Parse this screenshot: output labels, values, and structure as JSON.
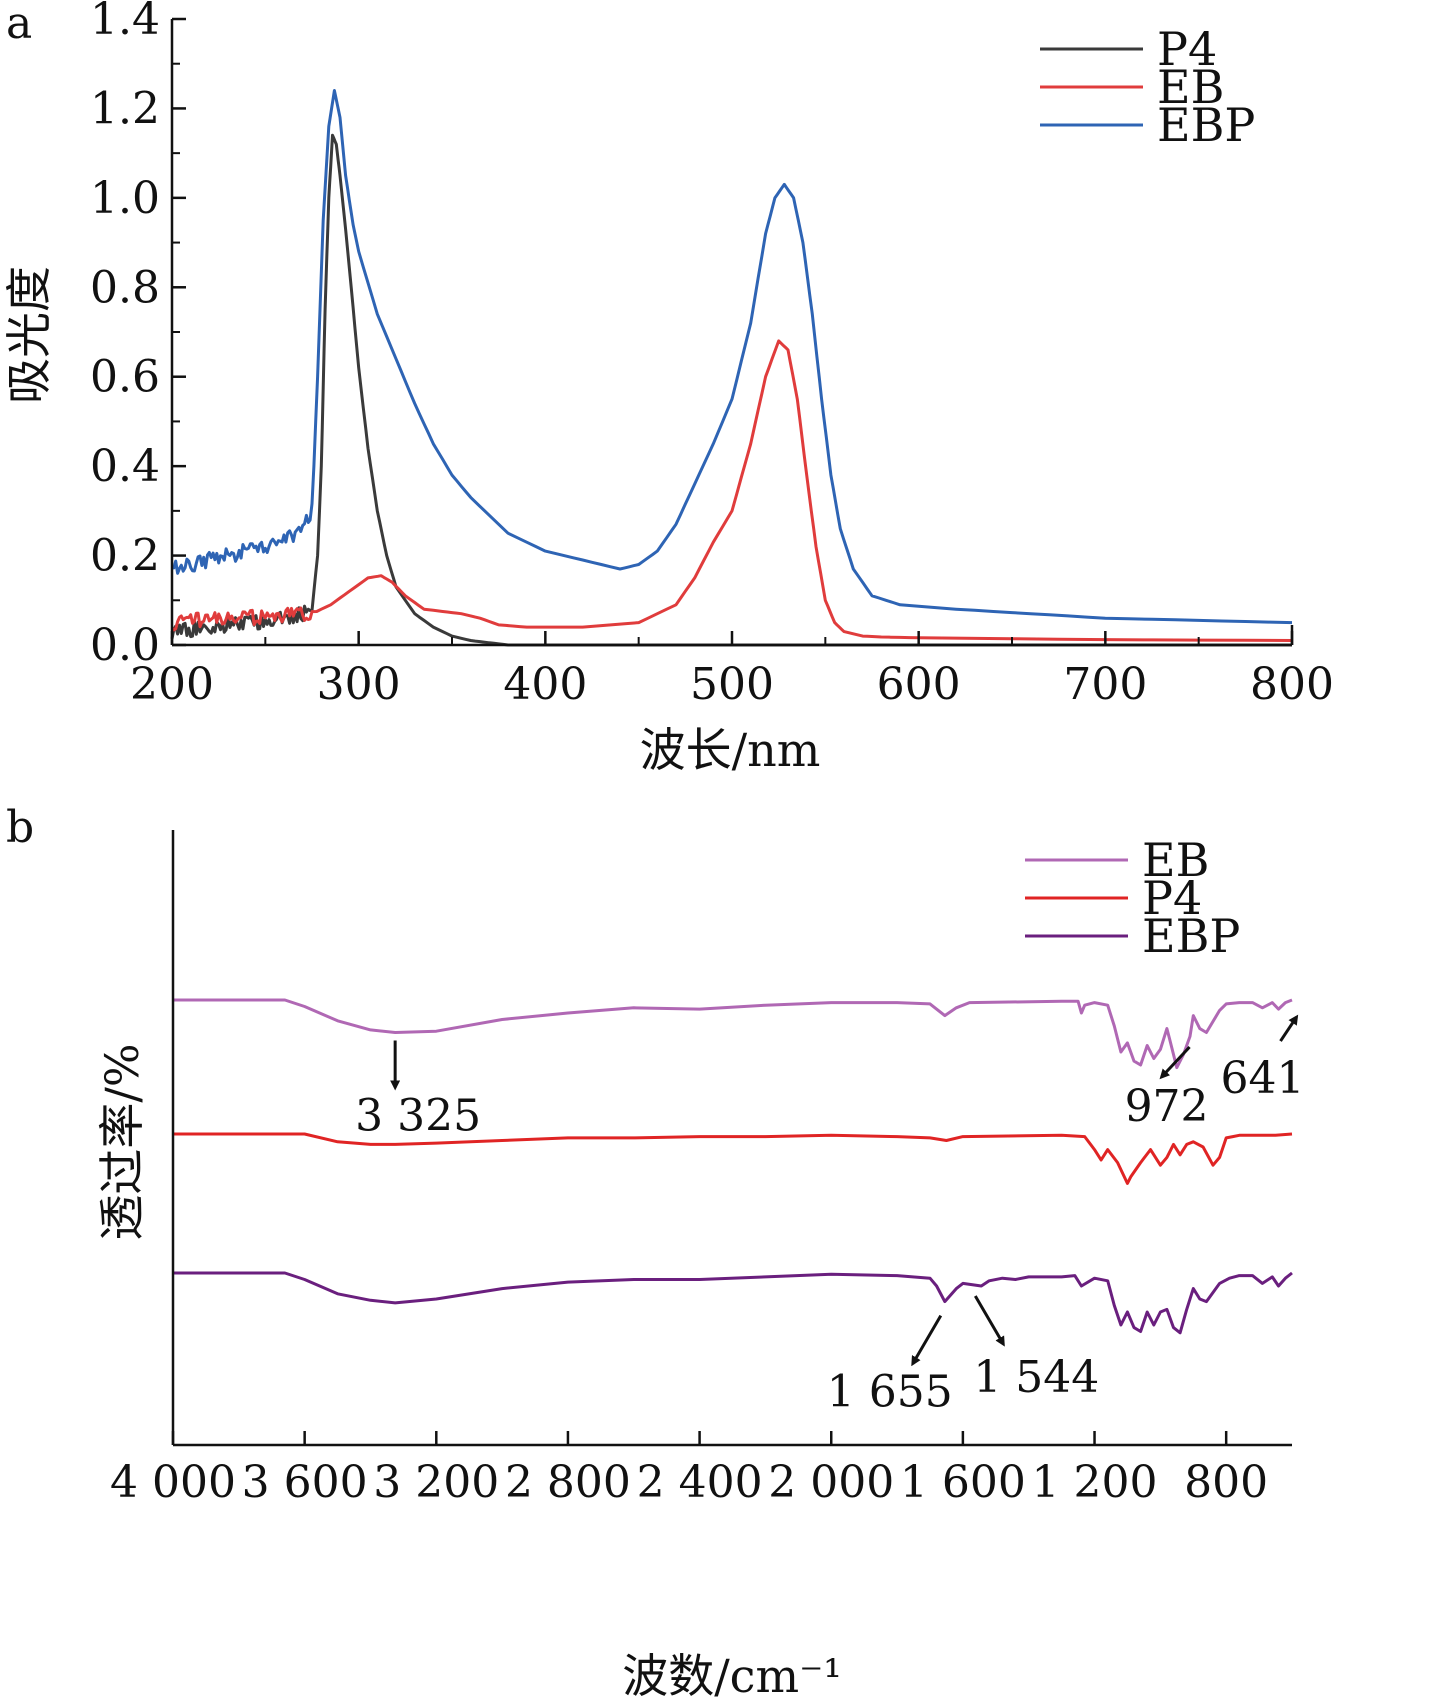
{
  "chart_data": [
    {
      "type": "line",
      "panel_label": "a",
      "xlabel": "波长/nm",
      "ylabel": "吸光度",
      "xlim": [
        200,
        800
      ],
      "ylim": [
        0.0,
        1.4
      ],
      "xticks": [
        "200",
        "300",
        "400",
        "500",
        "600",
        "700",
        "800"
      ],
      "yticks": [
        "0.0",
        "0.2",
        "0.4",
        "0.6",
        "0.8",
        "1.0",
        "1.2",
        "1.4"
      ],
      "legend_position": "top-right",
      "series": [
        {
          "name": "P4",
          "color": "#3a3a3a",
          "x": [
            200,
            220,
            240,
            260,
            270,
            275,
            278,
            280,
            282,
            284,
            286,
            288,
            290,
            293,
            296,
            300,
            305,
            310,
            315,
            320,
            330,
            340,
            350,
            360,
            370,
            380,
            400,
            450,
            500,
            550,
            600,
            700,
            800
          ],
          "y": [
            0.03,
            0.04,
            0.05,
            0.06,
            0.07,
            0.08,
            0.2,
            0.4,
            0.75,
            1.0,
            1.14,
            1.12,
            1.05,
            0.93,
            0.8,
            0.62,
            0.44,
            0.3,
            0.2,
            0.13,
            0.07,
            0.04,
            0.02,
            0.01,
            0.005,
            0.0,
            0.0,
            0.0,
            0.0,
            0.0,
            0.0,
            0.0,
            0.0
          ]
        },
        {
          "name": "EB",
          "color": "#e03c3c",
          "x": [
            200,
            220,
            240,
            260,
            275,
            285,
            295,
            305,
            312,
            318,
            325,
            335,
            345,
            355,
            365,
            375,
            390,
            420,
            450,
            470,
            480,
            490,
            500,
            510,
            518,
            525,
            530,
            535,
            540,
            545,
            550,
            555,
            560,
            570,
            580,
            600,
            700,
            800
          ],
          "y": [
            0.05,
            0.06,
            0.06,
            0.065,
            0.07,
            0.09,
            0.12,
            0.15,
            0.155,
            0.14,
            0.11,
            0.08,
            0.075,
            0.07,
            0.06,
            0.045,
            0.04,
            0.04,
            0.05,
            0.09,
            0.15,
            0.23,
            0.3,
            0.45,
            0.6,
            0.68,
            0.66,
            0.55,
            0.38,
            0.22,
            0.1,
            0.05,
            0.03,
            0.02,
            0.018,
            0.016,
            0.012,
            0.01
          ]
        },
        {
          "name": "EBP",
          "color": "#2e64b4",
          "x": [
            200,
            220,
            240,
            260,
            270,
            275,
            278,
            281,
            284,
            287,
            290,
            293,
            297,
            300,
            310,
            320,
            330,
            340,
            350,
            360,
            380,
            400,
            420,
            440,
            450,
            460,
            470,
            480,
            490,
            500,
            510,
            518,
            523,
            528,
            533,
            538,
            543,
            548,
            553,
            558,
            565,
            575,
            590,
            620,
            660,
            700,
            750,
            800
          ],
          "y": [
            0.17,
            0.19,
            0.21,
            0.23,
            0.26,
            0.3,
            0.6,
            0.95,
            1.16,
            1.24,
            1.18,
            1.05,
            0.94,
            0.88,
            0.74,
            0.64,
            0.54,
            0.45,
            0.38,
            0.33,
            0.25,
            0.21,
            0.19,
            0.17,
            0.18,
            0.21,
            0.27,
            0.36,
            0.45,
            0.55,
            0.72,
            0.92,
            1.0,
            1.03,
            1.0,
            0.9,
            0.74,
            0.55,
            0.38,
            0.26,
            0.17,
            0.11,
            0.09,
            0.08,
            0.07,
            0.06,
            0.055,
            0.05
          ]
        }
      ]
    },
    {
      "type": "line",
      "panel_label": "b",
      "xlabel": "波数/cm⁻¹",
      "ylabel": "透过率/%",
      "xlim": [
        4000,
        600
      ],
      "xticks": [
        "4 000",
        "3 600",
        "3 200",
        "2 800",
        "2 400",
        "2 000",
        "1 600",
        "1 200",
        "800"
      ],
      "yticks": [],
      "legend_position": "top-right",
      "offsets": {
        "EB": 0.0,
        "P4": -1.0,
        "EBP": -2.05
      },
      "series": [
        {
          "name": "EB",
          "color": "#b068b4",
          "x": [
            4000,
            3660,
            3600,
            3500,
            3400,
            3325,
            3200,
            3000,
            2800,
            2600,
            2400,
            2200,
            2000,
            1800,
            1700,
            1655,
            1620,
            1580,
            1300,
            1250,
            1240,
            1230,
            1200,
            1160,
            1140,
            1120,
            1100,
            1080,
            1060,
            1040,
            1020,
            1000,
            980,
            972,
            950,
            930,
            910,
            900,
            880,
            860,
            820,
            800,
            760,
            720,
            690,
            660,
            641,
            620,
            600
          ],
          "y": [
            0.0,
            0.0,
            -0.05,
            -0.16,
            -0.23,
            -0.25,
            -0.24,
            -0.15,
            -0.1,
            -0.06,
            -0.07,
            -0.04,
            -0.02,
            -0.02,
            -0.03,
            -0.12,
            -0.06,
            -0.02,
            -0.01,
            -0.01,
            -0.1,
            -0.04,
            -0.02,
            -0.04,
            -0.2,
            -0.4,
            -0.33,
            -0.47,
            -0.5,
            -0.35,
            -0.45,
            -0.38,
            -0.22,
            -0.3,
            -0.52,
            -0.42,
            -0.28,
            -0.12,
            -0.22,
            -0.25,
            -0.08,
            -0.03,
            -0.02,
            -0.02,
            -0.06,
            -0.02,
            -0.07,
            -0.02,
            0.0
          ]
        },
        {
          "name": "P4",
          "color": "#e02424",
          "x": [
            4000,
            3600,
            3500,
            3400,
            3325,
            3200,
            3000,
            2800,
            2600,
            2400,
            2200,
            2000,
            1800,
            1700,
            1650,
            1600,
            1300,
            1230,
            1200,
            1180,
            1160,
            1130,
            1100,
            1090,
            1060,
            1030,
            1000,
            980,
            960,
            940,
            920,
            900,
            870,
            840,
            820,
            800,
            780,
            760,
            700,
            650,
            600
          ],
          "y": [
            0.0,
            0.0,
            -0.06,
            -0.08,
            -0.08,
            -0.07,
            -0.05,
            -0.03,
            -0.03,
            -0.02,
            -0.02,
            -0.01,
            -0.02,
            -0.03,
            -0.05,
            -0.02,
            -0.01,
            -0.02,
            -0.12,
            -0.2,
            -0.12,
            -0.22,
            -0.38,
            -0.33,
            -0.22,
            -0.12,
            -0.24,
            -0.18,
            -0.08,
            -0.16,
            -0.08,
            -0.06,
            -0.1,
            -0.24,
            -0.18,
            -0.03,
            -0.02,
            -0.01,
            -0.01,
            -0.01,
            0.0
          ]
        },
        {
          "name": "EBP",
          "color": "#6a1f7e",
          "x": [
            4000,
            3660,
            3600,
            3500,
            3400,
            3325,
            3200,
            3000,
            2800,
            2600,
            2400,
            2200,
            2000,
            1800,
            1700,
            1680,
            1655,
            1620,
            1600,
            1544,
            1520,
            1480,
            1440,
            1400,
            1300,
            1260,
            1240,
            1200,
            1160,
            1140,
            1120,
            1100,
            1080,
            1060,
            1040,
            1020,
            1000,
            980,
            960,
            940,
            920,
            900,
            880,
            860,
            820,
            790,
            760,
            720,
            690,
            660,
            641,
            620,
            600
          ],
          "y": [
            0.0,
            0.0,
            -0.05,
            -0.16,
            -0.21,
            -0.23,
            -0.2,
            -0.12,
            -0.07,
            -0.05,
            -0.05,
            -0.03,
            -0.01,
            -0.02,
            -0.04,
            -0.1,
            -0.22,
            -0.12,
            -0.08,
            -0.1,
            -0.06,
            -0.04,
            -0.05,
            -0.03,
            -0.03,
            -0.02,
            -0.1,
            -0.04,
            -0.06,
            -0.25,
            -0.4,
            -0.3,
            -0.42,
            -0.45,
            -0.3,
            -0.4,
            -0.3,
            -0.28,
            -0.42,
            -0.46,
            -0.28,
            -0.12,
            -0.2,
            -0.22,
            -0.08,
            -0.04,
            -0.02,
            -0.02,
            -0.08,
            -0.03,
            -0.1,
            -0.04,
            0.0
          ]
        }
      ],
      "annotations": [
        {
          "text": "3 325",
          "target_series": "EB",
          "x": 3325
        },
        {
          "text": "972",
          "target_series": "EB",
          "x": 972
        },
        {
          "text": "641",
          "target_series": "EB",
          "x": 641
        },
        {
          "text": "1 655",
          "target_series": "EBP",
          "x": 1655
        },
        {
          "text": "1 544",
          "target_series": "EBP",
          "x": 1544
        }
      ]
    }
  ]
}
